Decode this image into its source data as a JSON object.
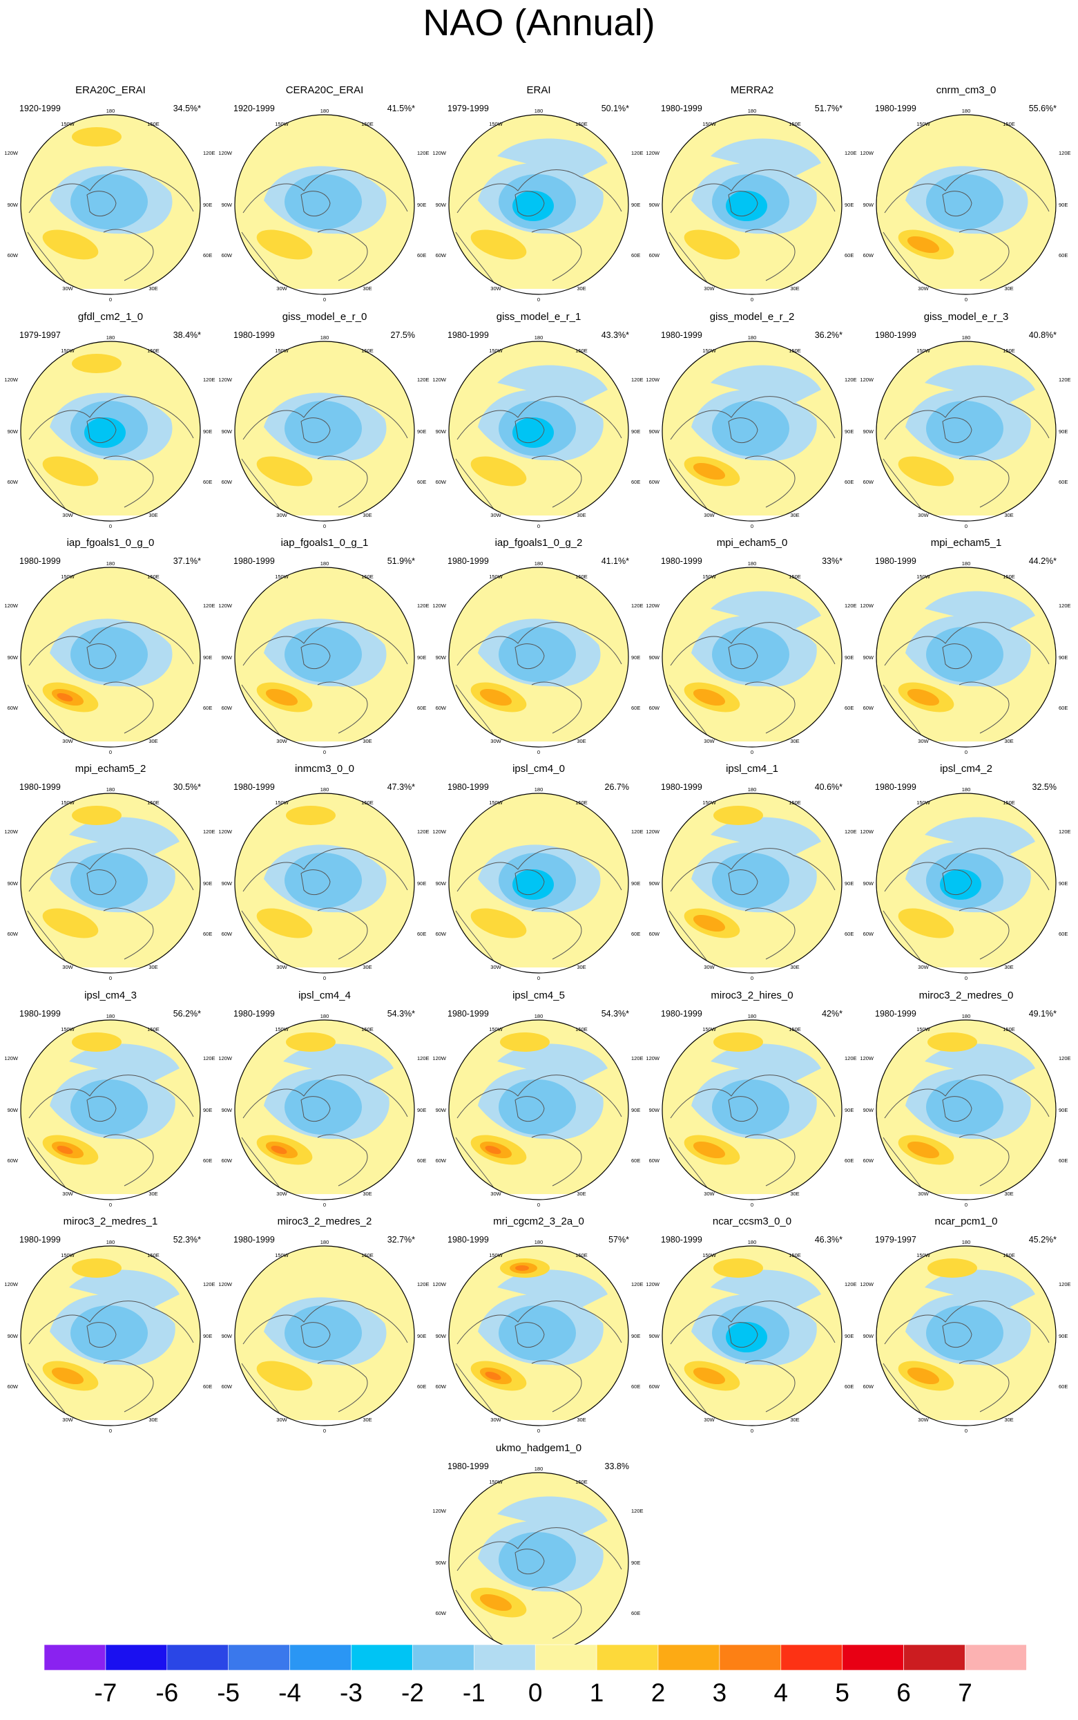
{
  "title": "NAO (Annual)",
  "lon_labels": {
    "top": "180",
    "top_left": "150W",
    "top_right": "150E",
    "upper_left": "120W",
    "upper_right": "120E",
    "left": "90W",
    "right": "90E",
    "lower_left": "60W",
    "lower_right": "60E",
    "bottom_left": "30W",
    "bottom_right": "30E",
    "bottom": "0"
  },
  "colors": {
    "-7": "#8a22f0",
    "-6": "#1a10f0",
    "-5": "#2a46e6",
    "-4": "#3a78ec",
    "-3": "#2a96f4",
    "-2": "#00c4f4",
    "-1": "#78c8f0",
    "-0": "#b2dcf2",
    "0": "#fdf5a0",
    "1": "#fdd93a",
    "2": "#fdaa14",
    "3": "#fd8014",
    "4": "#fd3214",
    "5": "#e80014",
    "6": "#cc1c20",
    "7": "#fcb2b2"
  },
  "colorbar": {
    "labels": [
      "-7",
      "-6",
      "-5",
      "-4",
      "-3",
      "-2",
      "-1",
      "0",
      "1",
      "2",
      "3",
      "4",
      "5",
      "6",
      "7"
    ]
  },
  "panels": [
    {
      "title": "ERA20C_ERAI",
      "period": "1920-1999",
      "variance": "34.5%*",
      "pos": 0.5,
      "ab": 1,
      "icel": -2,
      "ext": 0.3
    },
    {
      "title": "CERA20C_ERAI",
      "period": "1920-1999",
      "variance": "41.5%*",
      "pos": 0.5,
      "ab": 0.5,
      "icel": -2,
      "ext": 0.3
    },
    {
      "title": "ERAI",
      "period": "1979-1999",
      "variance": "50.1%*",
      "pos": 0.5,
      "ab": 0.5,
      "icel": -3,
      "ext": 0.5
    },
    {
      "title": "MERRA2",
      "period": "1980-1999",
      "variance": "51.7%*",
      "pos": 0.5,
      "ab": 0.5,
      "icel": -3,
      "ext": 0.5
    },
    {
      "title": "cnrm_cm3_0",
      "period": "1980-1999",
      "variance": "55.6%*",
      "pos": 1.5,
      "ab": 0.5,
      "icel": -2,
      "ext": 0.3
    },
    {
      "title": "gfdl_cm2_1_0",
      "period": "1979-1997",
      "variance": "38.4%*",
      "pos": 0.5,
      "ab": 1,
      "icel": -3,
      "ext": 0.3
    },
    {
      "title": "giss_model_e_r_0",
      "period": "1980-1999",
      "variance": "27.5%",
      "pos": 0.5,
      "ab": 0.5,
      "icel": -2,
      "ext": 0.3
    },
    {
      "title": "giss_model_e_r_1",
      "period": "1980-1999",
      "variance": "43.3%*",
      "pos": 0.5,
      "ab": 0.5,
      "icel": -3,
      "ext": 0.5
    },
    {
      "title": "giss_model_e_r_2",
      "period": "1980-1999",
      "variance": "36.2%*",
      "pos": 1.5,
      "ab": 0.5,
      "icel": -2,
      "ext": 0.5
    },
    {
      "title": "giss_model_e_r_3",
      "period": "1980-1999",
      "variance": "40.8%*",
      "pos": 0.5,
      "ab": 0.5,
      "icel": -2,
      "ext": 0.5
    },
    {
      "title": "iap_fgoals1_0_g_0",
      "period": "1980-1999",
      "variance": "37.1%*",
      "pos": 2.5,
      "ab": 0.5,
      "icel": -2,
      "ext": 0.3
    },
    {
      "title": "iap_fgoals1_0_g_1",
      "period": "1980-1999",
      "variance": "51.9%*",
      "pos": 1.5,
      "ab": 0.5,
      "icel": -2,
      "ext": 0.3
    },
    {
      "title": "iap_fgoals1_0_g_2",
      "period": "1980-1999",
      "variance": "41.1%*",
      "pos": 1.5,
      "ab": 0.5,
      "icel": -2,
      "ext": 0.3
    },
    {
      "title": "mpi_echam5_0",
      "period": "1980-1999",
      "variance": "33%*",
      "pos": 1.5,
      "ab": 0.5,
      "icel": -2,
      "ext": 0.5
    },
    {
      "title": "mpi_echam5_1",
      "period": "1980-1999",
      "variance": "44.2%*",
      "pos": 1.5,
      "ab": 0.5,
      "icel": -2,
      "ext": 0.5
    },
    {
      "title": "mpi_echam5_2",
      "period": "1980-1999",
      "variance": "30.5%*",
      "pos": 0.5,
      "ab": 1,
      "icel": -2,
      "ext": 0.5
    },
    {
      "title": "inmcm3_0_0",
      "period": "1980-1999",
      "variance": "47.3%*",
      "pos": 0.5,
      "ab": 1,
      "icel": -2,
      "ext": 0.3
    },
    {
      "title": "ipsl_cm4_0",
      "period": "1980-1999",
      "variance": "26.7%",
      "pos": 0.5,
      "ab": 0.5,
      "icel": -3,
      "ext": 0.3
    },
    {
      "title": "ipsl_cm4_1",
      "period": "1980-1999",
      "variance": "40.6%*",
      "pos": 1.5,
      "ab": 1.5,
      "icel": -2,
      "ext": 0.5
    },
    {
      "title": "ipsl_cm4_2",
      "period": "1980-1999",
      "variance": "32.5%",
      "pos": 0.5,
      "ab": 0.5,
      "icel": -3,
      "ext": 0.5
    },
    {
      "title": "ipsl_cm4_3",
      "period": "1980-1999",
      "variance": "56.2%*",
      "pos": 2.5,
      "ab": 1.5,
      "icel": -2,
      "ext": 0.5
    },
    {
      "title": "ipsl_cm4_4",
      "period": "1980-1999",
      "variance": "54.3%*",
      "pos": 2.5,
      "ab": 1.5,
      "icel": -2,
      "ext": 0.5
    },
    {
      "title": "ipsl_cm4_5",
      "period": "1980-1999",
      "variance": "54.3%*",
      "pos": 2.5,
      "ab": 1.5,
      "icel": -2,
      "ext": 0.5
    },
    {
      "title": "miroc3_2_hires_0",
      "period": "1980-1999",
      "variance": "42%*",
      "pos": 1.5,
      "ab": 1,
      "icel": -2,
      "ext": 0.5
    },
    {
      "title": "miroc3_2_medres_0",
      "period": "1980-1999",
      "variance": "49.1%*",
      "pos": 1.5,
      "ab": 1.5,
      "icel": -2,
      "ext": 0.5
    },
    {
      "title": "miroc3_2_medres_1",
      "period": "1980-1999",
      "variance": "52.3%*",
      "pos": 1.5,
      "ab": 1,
      "icel": -2,
      "ext": 0.5
    },
    {
      "title": "miroc3_2_medres_2",
      "period": "1980-1999",
      "variance": "32.7%*",
      "pos": 0.5,
      "ab": 0.5,
      "icel": -2,
      "ext": 0.3
    },
    {
      "title": "mri_cgcm2_3_2a_0",
      "period": "1980-1999",
      "variance": "57%*",
      "pos": 2.5,
      "ab": 2.5,
      "icel": -2,
      "ext": 0.5
    },
    {
      "title": "ncar_ccsm3_0_0",
      "period": "1980-1999",
      "variance": "46.3%*",
      "pos": 1.5,
      "ab": 1,
      "icel": -3,
      "ext": 0.5
    },
    {
      "title": "ncar_pcm1_0",
      "period": "1979-1997",
      "variance": "45.2%*",
      "pos": 1.5,
      "ab": 1,
      "icel": -2,
      "ext": 0.5
    },
    {
      "title": "ukmo_hadgem1_0",
      "period": "1980-1999",
      "variance": "33.8%",
      "pos": 1.5,
      "ab": 0.5,
      "icel": -2,
      "ext": 0.5
    }
  ]
}
